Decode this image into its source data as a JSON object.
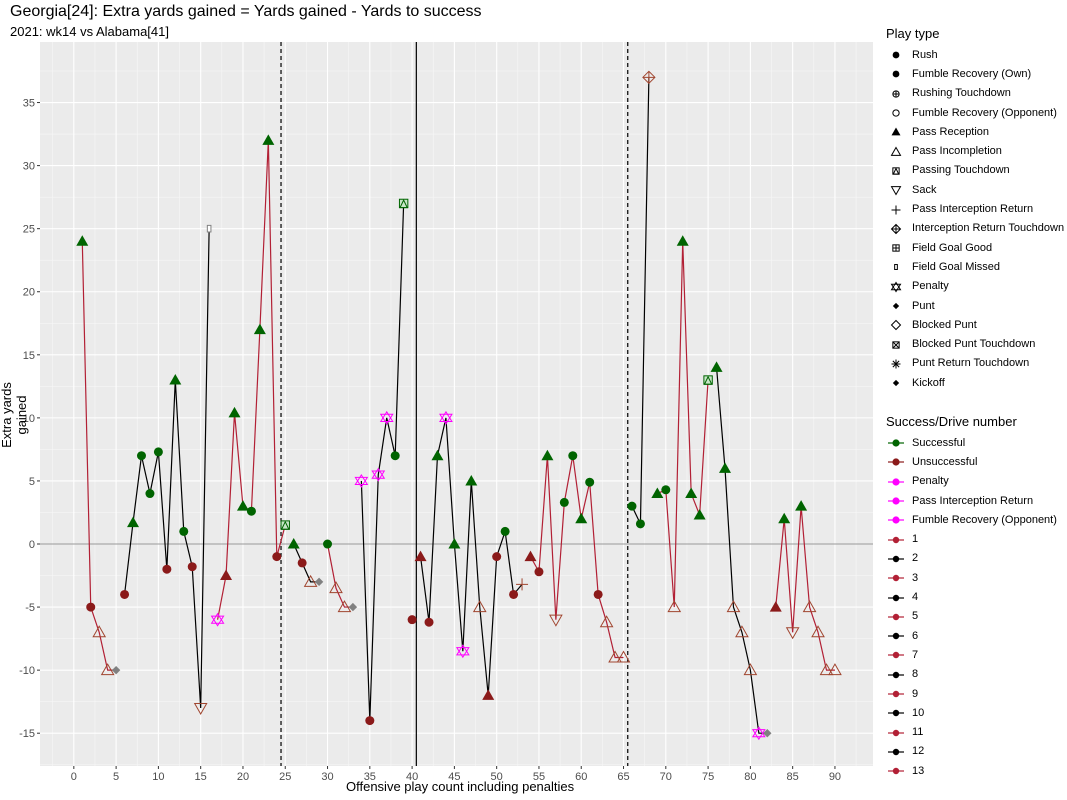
{
  "chart_data": {
    "type": "line",
    "title": "Georgia[24]: Extra yards gained = Yards gained - Yards to success",
    "subtitle": "2021: wk14 vs Alabama[41]",
    "xlabel": "Offensive play count including penalties",
    "ylabel": "Extra yards gained",
    "xlim": [
      -4,
      94.5
    ],
    "ylim": [
      -17.6,
      39.8
    ],
    "x_ticks": [
      0,
      5,
      10,
      15,
      20,
      25,
      30,
      35,
      40,
      45,
      50,
      55,
      60,
      65,
      70,
      75,
      80,
      85,
      90
    ],
    "y_ticks": [
      -15,
      -10,
      -5,
      0,
      5,
      10,
      15,
      20,
      25,
      30,
      35
    ],
    "halftime_line_x": 40.5,
    "quarter_lines_x": [
      24.5,
      65.5
    ],
    "grid": true,
    "legend_position": "right",
    "colors": {
      "successful": "#006400",
      "unsuccessful": "#8b1a1a",
      "penalty": "#ff00ff",
      "drive_odd": "#b22035",
      "drive_even": "#000000",
      "special": "#808080",
      "panel": "#ebebeb",
      "grid_major": "#ffffff"
    },
    "drives": [
      {
        "drive": 1,
        "points": [
          {
            "x": 1,
            "y": 24,
            "play": "Pass Reception",
            "result": "Successful"
          },
          {
            "x": 2,
            "y": -5,
            "play": "Rush",
            "result": "Unsuccessful"
          },
          {
            "x": 3,
            "y": -7,
            "play": "Pass Incompletion",
            "result": "Unsuccessful"
          },
          {
            "x": 4,
            "y": -10,
            "play": "Pass Incompletion",
            "result": "Unsuccessful"
          },
          {
            "x": 5,
            "y": -10,
            "play": "Punt",
            "result": "Special"
          }
        ]
      },
      {
        "drive": 2,
        "points": [
          {
            "x": 6,
            "y": -4,
            "play": "Rush",
            "result": "Unsuccessful"
          },
          {
            "x": 7,
            "y": 1.7,
            "play": "Pass Reception",
            "result": "Successful"
          },
          {
            "x": 8,
            "y": 7,
            "play": "Rush",
            "result": "Successful"
          },
          {
            "x": 9,
            "y": 4,
            "play": "Rush",
            "result": "Successful"
          },
          {
            "x": 10,
            "y": 7.3,
            "play": "Rush",
            "result": "Successful"
          },
          {
            "x": 11,
            "y": -2,
            "play": "Rush",
            "result": "Unsuccessful"
          },
          {
            "x": 12,
            "y": 13,
            "play": "Pass Reception",
            "result": "Successful"
          },
          {
            "x": 13,
            "y": 1,
            "play": "Rush",
            "result": "Successful"
          },
          {
            "x": 14,
            "y": -1.8,
            "play": "Rush",
            "result": "Unsuccessful"
          },
          {
            "x": 15,
            "y": -13,
            "play": "Sack",
            "result": "Unsuccessful"
          },
          {
            "x": 16,
            "y": 25,
            "play": "Field Goal Missed",
            "result": "Special"
          }
        ]
      },
      {
        "drive": 3,
        "points": [
          {
            "x": 17,
            "y": -6,
            "play": "Penalty",
            "result": "Penalty"
          },
          {
            "x": 18,
            "y": -2.5,
            "play": "Pass Reception",
            "result": "Unsuccessful"
          },
          {
            "x": 19,
            "y": 10.4,
            "play": "Pass Reception",
            "result": "Successful"
          },
          {
            "x": 20,
            "y": 3,
            "play": "Pass Reception",
            "result": "Successful"
          },
          {
            "x": 21,
            "y": 2.6,
            "play": "Rush",
            "result": "Successful"
          },
          {
            "x": 22,
            "y": 17,
            "play": "Pass Reception",
            "result": "Successful"
          },
          {
            "x": 23,
            "y": 32,
            "play": "Pass Reception",
            "result": "Successful"
          },
          {
            "x": 24,
            "y": -1,
            "play": "Rush",
            "result": "Unsuccessful"
          },
          {
            "x": 25,
            "y": 1.5,
            "play": "Passing Touchdown",
            "result": "Successful"
          }
        ]
      },
      {
        "drive": 4,
        "points": [
          {
            "x": 26,
            "y": 0,
            "play": "Pass Reception",
            "result": "Successful"
          },
          {
            "x": 27,
            "y": -1.5,
            "play": "Rush",
            "result": "Unsuccessful"
          },
          {
            "x": 28,
            "y": -3,
            "play": "Pass Incompletion",
            "result": "Unsuccessful"
          },
          {
            "x": 29,
            "y": -3,
            "play": "Punt",
            "result": "Special"
          }
        ]
      },
      {
        "drive": 5,
        "points": [
          {
            "x": 30,
            "y": 0,
            "play": "Rush",
            "result": "Successful"
          },
          {
            "x": 31,
            "y": -3.5,
            "play": "Pass Incompletion",
            "result": "Unsuccessful"
          },
          {
            "x": 32,
            "y": -5,
            "play": "Pass Incompletion",
            "result": "Unsuccessful"
          },
          {
            "x": 33,
            "y": -5,
            "play": "Punt",
            "result": "Special"
          }
        ]
      },
      {
        "drive": 6,
        "points": [
          {
            "x": 34,
            "y": 5,
            "play": "Penalty",
            "result": "Penalty"
          },
          {
            "x": 35,
            "y": -14,
            "play": "Rush",
            "result": "Unsuccessful"
          },
          {
            "x": 36,
            "y": 5.5,
            "play": "Penalty",
            "result": "Penalty"
          },
          {
            "x": 37,
            "y": 10,
            "play": "Penalty",
            "result": "Penalty"
          },
          {
            "x": 38,
            "y": 7,
            "play": "Rush",
            "result": "Successful"
          },
          {
            "x": 39,
            "y": 27,
            "play": "Passing Touchdown",
            "result": "Successful"
          }
        ]
      },
      {
        "drive": 7,
        "points": [
          {
            "x": 40,
            "y": -6,
            "play": "Rush",
            "result": "Unsuccessful"
          }
        ]
      },
      {
        "drive": 8,
        "points": [
          {
            "x": 41,
            "y": -1,
            "play": "Pass Reception",
            "result": "Unsuccessful"
          },
          {
            "x": 42,
            "y": -6.2,
            "play": "Rush",
            "result": "Unsuccessful"
          },
          {
            "x": 43,
            "y": 7,
            "play": "Pass Reception",
            "result": "Successful"
          },
          {
            "x": 44,
            "y": 10,
            "play": "Penalty",
            "result": "Penalty"
          },
          {
            "x": 45,
            "y": 0,
            "play": "Pass Reception",
            "result": "Successful"
          },
          {
            "x": 46,
            "y": -8.5,
            "play": "Penalty",
            "result": "Penalty"
          },
          {
            "x": 47,
            "y": 5,
            "play": "Pass Reception",
            "result": "Successful"
          },
          {
            "x": 48,
            "y": -5,
            "play": "Pass Incompletion",
            "result": "Unsuccessful"
          },
          {
            "x": 49,
            "y": -12,
            "play": "Pass Reception",
            "result": "Unsuccessful"
          },
          {
            "x": 50,
            "y": -1,
            "play": "Rush",
            "result": "Unsuccessful"
          },
          {
            "x": 51,
            "y": 1,
            "play": "Rush",
            "result": "Successful"
          },
          {
            "x": 52,
            "y": -4,
            "play": "Rush",
            "result": "Unsuccessful"
          },
          {
            "x": 53,
            "y": -3.2,
            "play": "Pass Interception Return",
            "result": "Unsuccessful"
          }
        ]
      },
      {
        "drive": 9,
        "points": [
          {
            "x": 54,
            "y": -1,
            "play": "Pass Reception",
            "result": "Unsuccessful"
          },
          {
            "x": 55,
            "y": -2.2,
            "play": "Rush",
            "result": "Unsuccessful"
          },
          {
            "x": 56,
            "y": 7,
            "play": "Pass Reception",
            "result": "Successful"
          },
          {
            "x": 57,
            "y": -6,
            "play": "Sack",
            "result": "Unsuccessful"
          },
          {
            "x": 58,
            "y": 3.3,
            "play": "Rush",
            "result": "Successful"
          },
          {
            "x": 59,
            "y": 7,
            "play": "Rush",
            "result": "Successful"
          },
          {
            "x": 60,
            "y": 2,
            "play": "Pass Reception",
            "result": "Successful"
          },
          {
            "x": 61,
            "y": 4.9,
            "play": "Rush",
            "result": "Successful"
          },
          {
            "x": 62,
            "y": -4,
            "play": "Rush",
            "result": "Unsuccessful"
          },
          {
            "x": 63,
            "y": -6.2,
            "play": "Pass Incompletion",
            "result": "Unsuccessful"
          },
          {
            "x": 64,
            "y": -9,
            "play": "Pass Incompletion",
            "result": "Unsuccessful"
          },
          {
            "x": 65,
            "y": -9,
            "play": "Pass Incompletion",
            "result": "Unsuccessful"
          }
        ]
      },
      {
        "drive": 10,
        "points": [
          {
            "x": 66,
            "y": 3,
            "play": "Rush",
            "result": "Successful"
          },
          {
            "x": 67,
            "y": 1.6,
            "play": "Rush",
            "result": "Successful"
          },
          {
            "x": 68,
            "y": 37,
            "play": "Interception Return Touchdown",
            "result": "Unsuccessful"
          }
        ]
      },
      {
        "drive": 11,
        "points": [
          {
            "x": 69,
            "y": 4,
            "play": "Pass Reception",
            "result": "Successful"
          },
          {
            "x": 70,
            "y": 4.3,
            "play": "Rush",
            "result": "Successful"
          },
          {
            "x": 71,
            "y": -5,
            "play": "Pass Incompletion",
            "result": "Unsuccessful"
          },
          {
            "x": 72,
            "y": 24,
            "play": "Pass Reception",
            "result": "Successful"
          },
          {
            "x": 73,
            "y": 4,
            "play": "Pass Reception",
            "result": "Successful"
          },
          {
            "x": 74,
            "y": 2.3,
            "play": "Pass Reception",
            "result": "Successful"
          },
          {
            "x": 75,
            "y": 13,
            "play": "Passing Touchdown",
            "result": "Successful"
          }
        ]
      },
      {
        "drive": 12,
        "points": [
          {
            "x": 76,
            "y": 14,
            "play": "Pass Reception",
            "result": "Successful"
          },
          {
            "x": 77,
            "y": 6,
            "play": "Pass Reception",
            "result": "Successful"
          },
          {
            "x": 78,
            "y": -5,
            "play": "Pass Incompletion",
            "result": "Unsuccessful"
          },
          {
            "x": 79,
            "y": -7,
            "play": "Pass Incompletion",
            "result": "Unsuccessful"
          },
          {
            "x": 80,
            "y": -10,
            "play": "Pass Incompletion",
            "result": "Unsuccessful"
          },
          {
            "x": 81,
            "y": -15,
            "play": "Penalty",
            "result": "Penalty"
          },
          {
            "x": 82,
            "y": -15,
            "play": "Punt",
            "result": "Special"
          }
        ]
      },
      {
        "drive": 13,
        "points": [
          {
            "x": 83,
            "y": -5,
            "play": "Pass Reception",
            "result": "Unsuccessful"
          },
          {
            "x": 84,
            "y": 2,
            "play": "Pass Reception",
            "result": "Successful"
          },
          {
            "x": 85,
            "y": -7,
            "play": "Sack",
            "result": "Unsuccessful"
          },
          {
            "x": 86,
            "y": 3,
            "play": "Pass Reception",
            "result": "Successful"
          },
          {
            "x": 87,
            "y": -5,
            "play": "Pass Incompletion",
            "result": "Unsuccessful"
          },
          {
            "x": 88,
            "y": -7,
            "play": "Pass Incompletion",
            "result": "Unsuccessful"
          },
          {
            "x": 89,
            "y": -10,
            "play": "Pass Incompletion",
            "result": "Unsuccessful"
          },
          {
            "x": 90,
            "y": -10,
            "play": "Pass Incompletion",
            "result": "Unsuccessful"
          }
        ]
      }
    ]
  },
  "legend_play_type": {
    "title": "Play type",
    "items": [
      {
        "label": "Rush",
        "icon": "filled-circle"
      },
      {
        "label": "Fumble Recovery (Own)",
        "icon": "filled-circle"
      },
      {
        "label": "Rushing Touchdown",
        "icon": "circle-plus"
      },
      {
        "label": "Fumble Recovery (Opponent)",
        "icon": "open-circle"
      },
      {
        "label": "Pass Reception",
        "icon": "filled-triangle"
      },
      {
        "label": "Pass Incompletion",
        "icon": "open-triangle"
      },
      {
        "label": "Passing Touchdown",
        "icon": "square-triangle"
      },
      {
        "label": "Sack",
        "icon": "open-triangle-down"
      },
      {
        "label": "Pass Interception Return",
        "icon": "plus"
      },
      {
        "label": "Interception Return Touchdown",
        "icon": "diamond-plus"
      },
      {
        "label": "Field Goal Good",
        "icon": "square-plus"
      },
      {
        "label": "Field Goal Missed",
        "icon": "small-rect"
      },
      {
        "label": "Penalty",
        "icon": "star-of-david"
      },
      {
        "label": "Punt",
        "icon": "filled-diamond"
      },
      {
        "label": "Blocked Punt",
        "icon": "open-diamond"
      },
      {
        "label": "Blocked Punt Touchdown",
        "icon": "square-x"
      },
      {
        "label": "Punt Return Touchdown",
        "icon": "asterisk"
      },
      {
        "label": "Kickoff",
        "icon": "filled-diamond"
      }
    ]
  },
  "legend_success": {
    "title": "Success/Drive number",
    "items": [
      {
        "label": "Successful",
        "color": "#006400",
        "kind": "point-line"
      },
      {
        "label": "Unsuccessful",
        "color": "#8b1a1a",
        "kind": "point-line"
      },
      {
        "label": "Penalty",
        "color": "#ff00ff",
        "kind": "point-line"
      },
      {
        "label": "Pass Interception Return",
        "color": "#ff00ff",
        "kind": "point-line"
      },
      {
        "label": "Fumble Recovery (Opponent)",
        "color": "#ff00ff",
        "kind": "point-line"
      },
      {
        "label": "1",
        "color": "#b22035",
        "kind": "line"
      },
      {
        "label": "2",
        "color": "#000000",
        "kind": "line"
      },
      {
        "label": "3",
        "color": "#b22035",
        "kind": "line"
      },
      {
        "label": "4",
        "color": "#000000",
        "kind": "line"
      },
      {
        "label": "5",
        "color": "#b22035",
        "kind": "line"
      },
      {
        "label": "6",
        "color": "#000000",
        "kind": "line"
      },
      {
        "label": "7",
        "color": "#b22035",
        "kind": "line"
      },
      {
        "label": "8",
        "color": "#000000",
        "kind": "line"
      },
      {
        "label": "9",
        "color": "#b22035",
        "kind": "line"
      },
      {
        "label": "10",
        "color": "#000000",
        "kind": "line"
      },
      {
        "label": "11",
        "color": "#b22035",
        "kind": "line"
      },
      {
        "label": "12",
        "color": "#000000",
        "kind": "line"
      },
      {
        "label": "13",
        "color": "#b22035",
        "kind": "line"
      }
    ]
  }
}
